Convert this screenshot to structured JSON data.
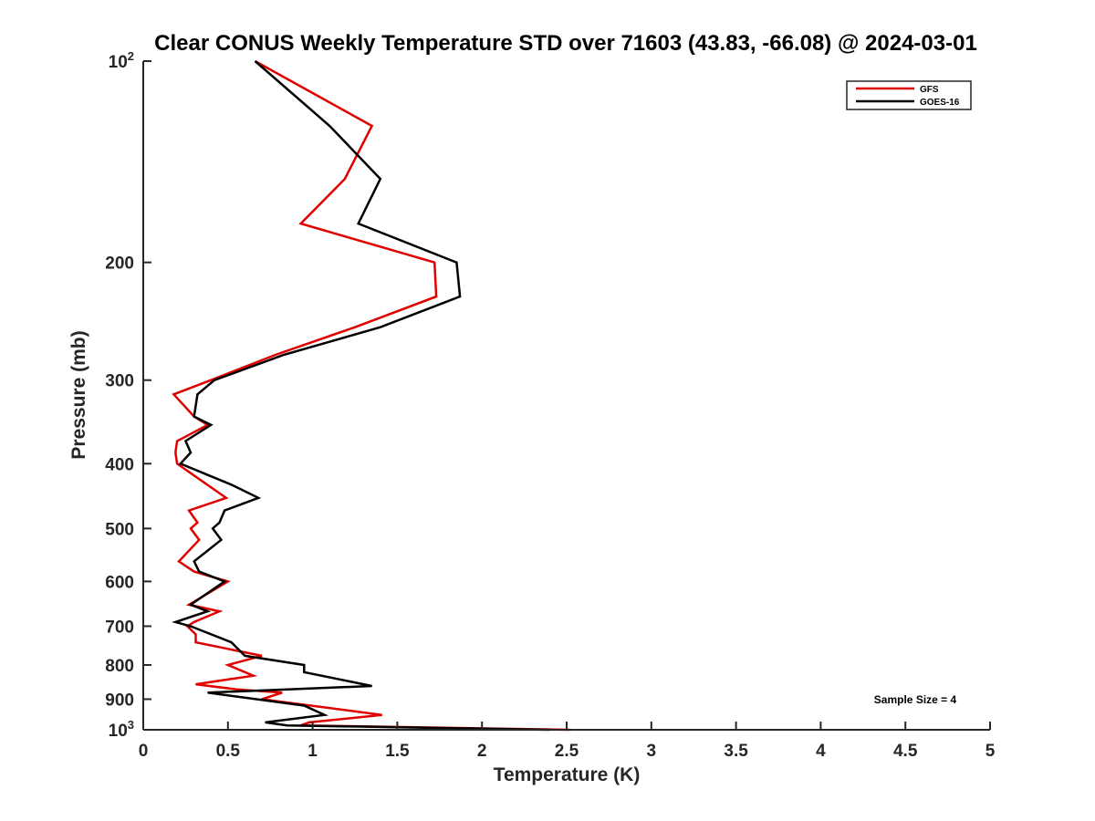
{
  "chart_data": {
    "type": "line",
    "title": "Clear CONUS Weekly Temperature STD over 71603 (43.83, -66.08) @ 2024-03-01",
    "xlabel": "Temperature (K)",
    "ylabel": "Pressure (mb)",
    "xlim": [
      0,
      5
    ],
    "ylim": [
      1000,
      100
    ],
    "yscale": "log",
    "y_reversed": true,
    "grid": false,
    "legend_position": "top-right",
    "x_ticks": [
      {
        "value": 0,
        "label": "0"
      },
      {
        "value": 0.5,
        "label": "0.5"
      },
      {
        "value": 1,
        "label": "1"
      },
      {
        "value": 1.5,
        "label": "1.5"
      },
      {
        "value": 2,
        "label": "2"
      },
      {
        "value": 2.5,
        "label": "2.5"
      },
      {
        "value": 3,
        "label": "3"
      },
      {
        "value": 3.5,
        "label": "3.5"
      },
      {
        "value": 4,
        "label": "4"
      },
      {
        "value": 4.5,
        "label": "4.5"
      },
      {
        "value": 5,
        "label": "5"
      }
    ],
    "y_ticks": [
      {
        "value": 100,
        "base": "10",
        "exp": "2"
      },
      {
        "value": 200,
        "label": "200"
      },
      {
        "value": 300,
        "label": "300"
      },
      {
        "value": 400,
        "label": "400"
      },
      {
        "value": 500,
        "label": "500"
      },
      {
        "value": 600,
        "label": "600"
      },
      {
        "value": 700,
        "label": "700"
      },
      {
        "value": 800,
        "label": "800"
      },
      {
        "value": 900,
        "label": "900"
      },
      {
        "value": 1000,
        "base": "10",
        "exp": "3"
      }
    ],
    "annotation": "Sample Size = 4",
    "series": [
      {
        "name": "GFS",
        "color": "#e00000",
        "points": [
          [
            0.66,
            100
          ],
          [
            1.35,
            125
          ],
          [
            1.19,
            150
          ],
          [
            0.93,
            175
          ],
          [
            1.72,
            200
          ],
          [
            1.73,
            225
          ],
          [
            1.25,
            250
          ],
          [
            0.78,
            275
          ],
          [
            0.4,
            300
          ],
          [
            0.18,
            315
          ],
          [
            0.3,
            340
          ],
          [
            0.38,
            350
          ],
          [
            0.2,
            370
          ],
          [
            0.19,
            385
          ],
          [
            0.2,
            400
          ],
          [
            0.49,
            450
          ],
          [
            0.27,
            470
          ],
          [
            0.32,
            490
          ],
          [
            0.28,
            500
          ],
          [
            0.33,
            520
          ],
          [
            0.21,
            560
          ],
          [
            0.3,
            580
          ],
          [
            0.5,
            600
          ],
          [
            0.27,
            650
          ],
          [
            0.45,
            665
          ],
          [
            0.3,
            690
          ],
          [
            0.26,
            700
          ],
          [
            0.31,
            720
          ],
          [
            0.31,
            740
          ],
          [
            0.7,
            775
          ],
          [
            0.5,
            800
          ],
          [
            0.65,
            830
          ],
          [
            0.31,
            855
          ],
          [
            0.55,
            870
          ],
          [
            0.82,
            880
          ],
          [
            0.7,
            900
          ],
          [
            1.41,
            950
          ],
          [
            0.98,
            975
          ],
          [
            0.93,
            985
          ],
          [
            2.52,
            1000
          ]
        ]
      },
      {
        "name": "GOES-16",
        "color": "#000000",
        "points": [
          [
            0.66,
            100
          ],
          [
            1.1,
            125
          ],
          [
            1.4,
            150
          ],
          [
            1.27,
            175
          ],
          [
            1.85,
            200
          ],
          [
            1.87,
            225
          ],
          [
            1.4,
            250
          ],
          [
            0.83,
            275
          ],
          [
            0.42,
            300
          ],
          [
            0.32,
            315
          ],
          [
            0.3,
            340
          ],
          [
            0.4,
            350
          ],
          [
            0.25,
            370
          ],
          [
            0.28,
            385
          ],
          [
            0.22,
            400
          ],
          [
            0.52,
            430
          ],
          [
            0.68,
            450
          ],
          [
            0.48,
            470
          ],
          [
            0.45,
            490
          ],
          [
            0.41,
            500
          ],
          [
            0.46,
            520
          ],
          [
            0.3,
            560
          ],
          [
            0.33,
            580
          ],
          [
            0.48,
            600
          ],
          [
            0.28,
            650
          ],
          [
            0.38,
            665
          ],
          [
            0.19,
            690
          ],
          [
            0.28,
            700
          ],
          [
            0.52,
            740
          ],
          [
            0.6,
            775
          ],
          [
            0.95,
            800
          ],
          [
            0.95,
            820
          ],
          [
            1.35,
            860
          ],
          [
            0.38,
            880
          ],
          [
            0.95,
            920
          ],
          [
            1.07,
            950
          ],
          [
            0.72,
            975
          ],
          [
            0.85,
            985
          ],
          [
            2.4,
            1000
          ]
        ]
      }
    ]
  }
}
